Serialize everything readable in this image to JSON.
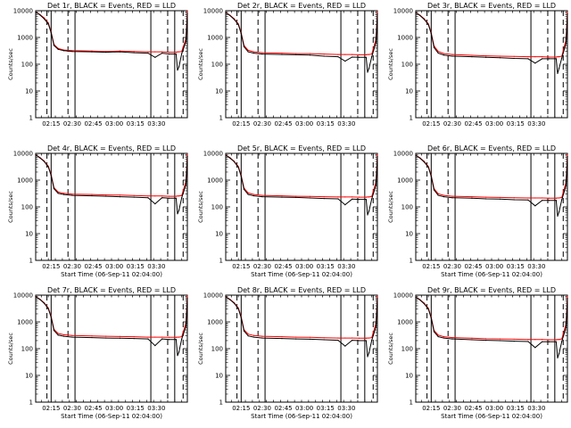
{
  "figure": {
    "background": "#ffffff",
    "events_color": "#000000",
    "lld_color": "#ff0000"
  },
  "chart_data": [
    {
      "type": "line",
      "title": "Det 1r, BLACK = Events, RED = LLD",
      "xlabel": "",
      "ylabel": "Counts/sec",
      "yscale": "log",
      "ylim": [
        1,
        10000
      ],
      "x_ticklabels": [
        "02:15",
        "02:30",
        "02:45",
        "03:00",
        "03:15",
        "03:30"
      ],
      "y_ticklabels": [
        "1",
        "10",
        "100",
        "1000",
        "10000"
      ],
      "x_minutes": [
        0,
        3,
        6,
        9,
        11,
        13,
        16,
        20,
        26,
        40,
        50,
        60,
        70,
        80,
        85,
        90,
        95,
        100,
        101,
        102,
        104,
        107,
        108
      ],
      "series": [
        {
          "name": "BLACK = Events",
          "values": [
            9000,
            7000,
            5000,
            3200,
            1500,
            500,
            360,
            320,
            300,
            290,
            280,
            290,
            270,
            260,
            180,
            260,
            240,
            240,
            60,
            80,
            250,
            700,
            8000
          ]
        },
        {
          "name": "RED = LLD",
          "values": [
            9000,
            7200,
            5400,
            3500,
            1600,
            550,
            390,
            340,
            320,
            310,
            300,
            310,
            300,
            290,
            290,
            290,
            280,
            280,
            290,
            290,
            300,
            900,
            9500
          ]
        }
      ],
      "markers": {
        "solid": [
          11,
          28,
          82,
          99
        ],
        "dashed": [
          8,
          23,
          94,
          105
        ]
      }
    },
    {
      "type": "line",
      "title": "Det 2r, BLACK = Events, RED = LLD",
      "xlabel": "",
      "ylabel": "Counts/sec",
      "yscale": "log",
      "ylim": [
        1,
        10000
      ],
      "x_ticklabels": [
        "02:15",
        "02:30",
        "02:45",
        "03:00",
        "03:15",
        "03:30"
      ],
      "y_ticklabels": [
        "1",
        "10",
        "100",
        "1000",
        "10000"
      ],
      "x_minutes": [
        0,
        3,
        6,
        9,
        11,
        13,
        16,
        20,
        26,
        40,
        50,
        60,
        70,
        80,
        85,
        90,
        95,
        100,
        101,
        102,
        104,
        107,
        108
      ],
      "series": [
        {
          "name": "BLACK = Events",
          "values": [
            8500,
            6600,
            4800,
            3000,
            1400,
            450,
            290,
            260,
            240,
            230,
            225,
            220,
            200,
            190,
            130,
            185,
            180,
            180,
            50,
            70,
            190,
            650,
            7800
          ]
        },
        {
          "name": "RED = LLD",
          "values": [
            8600,
            6800,
            5000,
            3200,
            1500,
            500,
            330,
            290,
            270,
            260,
            250,
            250,
            240,
            230,
            230,
            230,
            225,
            225,
            230,
            230,
            240,
            850,
            9200
          ]
        }
      ],
      "markers": {
        "solid": [
          11,
          28,
          82,
          99
        ],
        "dashed": [
          8,
          23,
          94,
          105
        ]
      }
    },
    {
      "type": "line",
      "title": "Det 3r, BLACK = Events, RED = LLD",
      "xlabel": "",
      "ylabel": "Counts/sec",
      "yscale": "log",
      "ylim": [
        1,
        10000
      ],
      "x_ticklabels": [
        "02:15",
        "02:30",
        "02:45",
        "03:00",
        "03:15",
        "03:30"
      ],
      "y_ticklabels": [
        "1",
        "10",
        "100",
        "1000",
        "10000"
      ],
      "x_minutes": [
        0,
        3,
        6,
        9,
        11,
        13,
        16,
        20,
        26,
        40,
        50,
        60,
        70,
        80,
        85,
        90,
        95,
        100,
        101,
        102,
        104,
        107,
        108
      ],
      "series": [
        {
          "name": "BLACK = Events",
          "values": [
            8500,
            6600,
            4800,
            3000,
            1400,
            420,
            260,
            220,
            200,
            190,
            180,
            175,
            165,
            160,
            110,
            160,
            160,
            160,
            45,
            70,
            170,
            600,
            7600
          ]
        },
        {
          "name": "RED = LLD",
          "values": [
            8600,
            6800,
            5000,
            3200,
            1500,
            480,
            300,
            250,
            230,
            215,
            205,
            200,
            195,
            190,
            190,
            190,
            185,
            185,
            190,
            190,
            200,
            800,
            9000
          ]
        }
      ],
      "markers": {
        "solid": [
          11,
          28,
          82,
          99
        ],
        "dashed": [
          8,
          23,
          94,
          105
        ]
      }
    },
    {
      "type": "line",
      "title": "Det 4r, BLACK = Events, RED = LLD",
      "xlabel": "Start Time (06-Sep-11 02:04:00)",
      "ylabel": "Counts/sec",
      "yscale": "log",
      "ylim": [
        1,
        10000
      ],
      "x_ticklabels": [
        "02:15",
        "02:30",
        "02:45",
        "03:00",
        "03:15",
        "03:30"
      ],
      "y_ticklabels": [
        "1",
        "10",
        "100",
        "1000",
        "10000"
      ],
      "x_minutes": [
        0,
        3,
        6,
        9,
        11,
        13,
        16,
        20,
        26,
        40,
        50,
        60,
        70,
        80,
        85,
        90,
        95,
        100,
        101,
        102,
        104,
        107,
        108
      ],
      "series": [
        {
          "name": "BLACK = Events",
          "values": [
            8800,
            6800,
            5000,
            3100,
            1500,
            480,
            320,
            290,
            270,
            260,
            250,
            240,
            230,
            220,
            130,
            220,
            210,
            210,
            55,
            75,
            220,
            680,
            7900
          ]
        },
        {
          "name": "RED = LLD",
          "values": [
            8900,
            7000,
            5200,
            3300,
            1600,
            520,
            360,
            320,
            300,
            290,
            280,
            275,
            265,
            255,
            255,
            255,
            250,
            250,
            255,
            255,
            265,
            880,
            9300
          ]
        }
      ],
      "markers": {
        "solid": [
          11,
          28,
          82,
          99
        ],
        "dashed": [
          8,
          23,
          94,
          105
        ]
      }
    },
    {
      "type": "line",
      "title": "Det 5r, BLACK = Events, RED = LLD",
      "xlabel": "Start Time (06-Sep-11 02:04:00)",
      "ylabel": "Counts/sec",
      "yscale": "log",
      "ylim": [
        1,
        10000
      ],
      "x_ticklabels": [
        "02:15",
        "02:30",
        "02:45",
        "03:00",
        "03:15",
        "03:30"
      ],
      "y_ticklabels": [
        "1",
        "10",
        "100",
        "1000",
        "10000"
      ],
      "x_minutes": [
        0,
        3,
        6,
        9,
        11,
        13,
        16,
        20,
        26,
        40,
        50,
        60,
        70,
        80,
        85,
        90,
        95,
        100,
        101,
        102,
        104,
        107,
        108
      ],
      "series": [
        {
          "name": "BLACK = Events",
          "values": [
            8600,
            6700,
            4900,
            3000,
            1400,
            450,
            290,
            260,
            240,
            230,
            225,
            215,
            205,
            200,
            120,
            195,
            190,
            190,
            50,
            70,
            200,
            650,
            7700
          ]
        },
        {
          "name": "RED = LLD",
          "values": [
            8700,
            6900,
            5100,
            3200,
            1500,
            500,
            330,
            290,
            270,
            260,
            250,
            245,
            240,
            235,
            235,
            235,
            230,
            230,
            235,
            235,
            245,
            850,
            9100
          ]
        }
      ],
      "markers": {
        "solid": [
          11,
          28,
          82,
          99
        ],
        "dashed": [
          8,
          23,
          94,
          105
        ]
      }
    },
    {
      "type": "line",
      "title": "Det 6r, BLACK = Events, RED = LLD",
      "xlabel": "Start Time (06-Sep-11 02:04:00)",
      "ylabel": "Counts/sec",
      "yscale": "log",
      "ylim": [
        1,
        10000
      ],
      "x_ticklabels": [
        "02:15",
        "02:30",
        "02:45",
        "03:00",
        "03:15",
        "03:30"
      ],
      "y_ticklabels": [
        "1",
        "10",
        "100",
        "1000",
        "10000"
      ],
      "x_minutes": [
        0,
        3,
        6,
        9,
        11,
        13,
        16,
        20,
        26,
        40,
        50,
        60,
        70,
        80,
        85,
        90,
        95,
        100,
        101,
        102,
        104,
        107,
        108
      ],
      "series": [
        {
          "name": "BLACK = Events",
          "values": [
            8500,
            6600,
            4800,
            3000,
            1400,
            430,
            270,
            240,
            220,
            210,
            200,
            195,
            185,
            180,
            110,
            175,
            175,
            175,
            45,
            65,
            185,
            620,
            7600
          ]
        },
        {
          "name": "RED = LLD",
          "values": [
            8600,
            6800,
            5000,
            3200,
            1500,
            480,
            310,
            270,
            250,
            240,
            230,
            225,
            220,
            215,
            215,
            215,
            210,
            210,
            215,
            215,
            225,
            820,
            9000
          ]
        }
      ],
      "markers": {
        "solid": [
          11,
          28,
          82,
          99
        ],
        "dashed": [
          8,
          23,
          94,
          105
        ]
      }
    },
    {
      "type": "line",
      "title": "Det 7r, BLACK = Events, RED = LLD",
      "xlabel": "Start Time (06-Sep-11 02:04:00)",
      "ylabel": "Counts/sec",
      "yscale": "log",
      "ylim": [
        1,
        10000
      ],
      "x_ticklabels": [
        "02:15",
        "02:30",
        "02:45",
        "03:00",
        "03:15",
        "03:30"
      ],
      "y_ticklabels": [
        "1",
        "10",
        "100",
        "1000",
        "10000"
      ],
      "x_minutes": [
        0,
        3,
        6,
        9,
        11,
        13,
        16,
        20,
        26,
        40,
        50,
        60,
        70,
        80,
        85,
        90,
        95,
        100,
        101,
        102,
        104,
        107,
        108
      ],
      "series": [
        {
          "name": "BLACK = Events",
          "values": [
            8800,
            6900,
            5000,
            3100,
            1500,
            480,
            320,
            290,
            270,
            260,
            250,
            245,
            240,
            230,
            130,
            230,
            220,
            220,
            55,
            75,
            230,
            680,
            7900
          ]
        },
        {
          "name": "RED = LLD",
          "values": [
            8900,
            7100,
            5200,
            3300,
            1600,
            530,
            370,
            330,
            310,
            300,
            290,
            285,
            280,
            270,
            270,
            270,
            265,
            265,
            270,
            270,
            280,
            900,
            9400
          ]
        }
      ],
      "markers": {
        "solid": [
          11,
          28,
          82,
          99
        ],
        "dashed": [
          8,
          23,
          94,
          105
        ]
      }
    },
    {
      "type": "line",
      "title": "Det 8r, BLACK = Events, RED = LLD",
      "xlabel": "Start Time (06-Sep-11 02:04:00)",
      "ylabel": "Counts/sec",
      "yscale": "log",
      "ylim": [
        1,
        10000
      ],
      "x_ticklabels": [
        "02:15",
        "02:30",
        "02:45",
        "03:00",
        "03:15",
        "03:30"
      ],
      "y_ticklabels": [
        "1",
        "10",
        "100",
        "1000",
        "10000"
      ],
      "x_minutes": [
        0,
        3,
        6,
        9,
        11,
        13,
        16,
        20,
        26,
        40,
        50,
        60,
        70,
        80,
        85,
        90,
        95,
        100,
        101,
        102,
        104,
        107,
        108
      ],
      "series": [
        {
          "name": "BLACK = Events",
          "values": [
            8700,
            6800,
            5000,
            3100,
            1450,
            460,
            300,
            270,
            250,
            240,
            230,
            225,
            215,
            205,
            125,
            205,
            200,
            200,
            50,
            70,
            205,
            660,
            7800
          ]
        },
        {
          "name": "RED = LLD",
          "values": [
            8800,
            7000,
            5200,
            3300,
            1550,
            510,
            350,
            310,
            290,
            280,
            270,
            265,
            255,
            250,
            250,
            250,
            245,
            245,
            250,
            250,
            260,
            870,
            9200
          ]
        }
      ],
      "markers": {
        "solid": [
          11,
          28,
          82,
          99
        ],
        "dashed": [
          8,
          23,
          94,
          105
        ]
      }
    },
    {
      "type": "line",
      "title": "Det 9r, BLACK = Events, RED = LLD",
      "xlabel": "Start Time (06-Sep-11 02:04:00)",
      "ylabel": "Counts/sec",
      "yscale": "log",
      "ylim": [
        1,
        10000
      ],
      "x_ticklabels": [
        "02:15",
        "02:30",
        "02:45",
        "03:00",
        "03:15",
        "03:30"
      ],
      "y_ticklabels": [
        "1",
        "10",
        "100",
        "1000",
        "10000"
      ],
      "x_minutes": [
        0,
        3,
        6,
        9,
        11,
        13,
        16,
        20,
        26,
        40,
        50,
        60,
        70,
        80,
        85,
        90,
        95,
        100,
        101,
        102,
        104,
        107,
        108
      ],
      "series": [
        {
          "name": "BLACK = Events",
          "values": [
            8500,
            6600,
            4800,
            3000,
            1400,
            430,
            280,
            250,
            230,
            215,
            205,
            200,
            190,
            185,
            110,
            180,
            180,
            180,
            45,
            65,
            185,
            620,
            7600
          ]
        },
        {
          "name": "RED = LLD",
          "values": [
            8600,
            6800,
            5000,
            3200,
            1500,
            480,
            320,
            280,
            260,
            245,
            235,
            230,
            225,
            220,
            220,
            220,
            215,
            215,
            220,
            220,
            230,
            830,
            9000
          ]
        }
      ],
      "markers": {
        "solid": [
          11,
          28,
          82,
          99
        ],
        "dashed": [
          8,
          23,
          94,
          105
        ]
      }
    }
  ]
}
